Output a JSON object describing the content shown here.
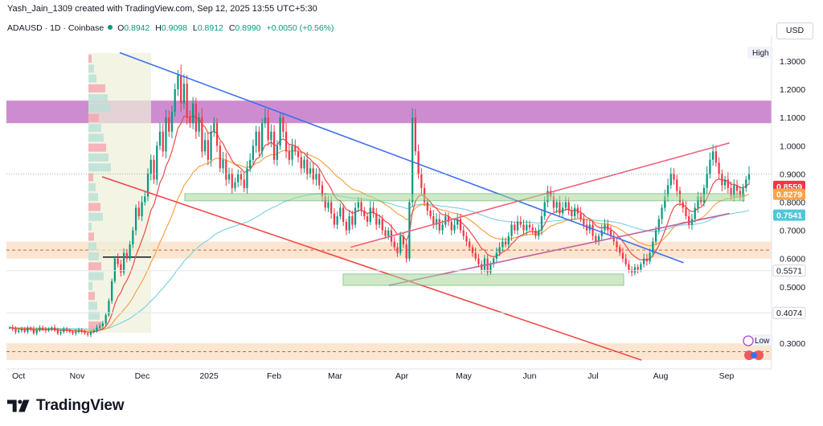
{
  "header": {
    "attribution": "Yash_Jain_1309 created with TradingView.com, Sep 12, 2025 13:55 UTC+5:30",
    "symbol": "ADAUSD · 1D · Coinbase",
    "open_label": "O",
    "open": "0.8942",
    "high_label": "H",
    "high": "0.9098",
    "low_label": "L",
    "low": "0.8912",
    "close_label": "C",
    "close": "0.8990",
    "change": "+0.0050 (+0.56%)",
    "currency": "USD"
  },
  "brand": {
    "name": "TradingView"
  },
  "colors": {
    "up": "#089981",
    "down": "#f23645",
    "ema_red": "#f04848",
    "ema_orange": "#f7a44a",
    "ema_teal": "#7fd4e0",
    "trend_blue": "#3d6ef0",
    "trend_red": "#f04848",
    "resistance_zone": "#c678c8",
    "support_zone": "#f8c89a",
    "green_zone": "#a9d69a"
  },
  "chart_data": {
    "type": "candlestick",
    "symbol": "ADAUSD",
    "interval": "1D",
    "exchange": "Coinbase",
    "x_axis_ticks": [
      "Oct",
      "Nov",
      "Dec",
      "2025",
      "Feb",
      "Mar",
      "Apr",
      "May",
      "Jun",
      "Jul",
      "Aug",
      "Sep"
    ],
    "y_axis_ticks": [
      "1.3000",
      "1.2000",
      "1.1000",
      "1.0000",
      "0.9000",
      "0.8000",
      "0.7000",
      "0.6000",
      "0.5000",
      "0.3000"
    ],
    "ylim": [
      0.22,
      1.36
    ],
    "y_tick_values": [
      1.3,
      1.2,
      1.1,
      1.0,
      0.9,
      0.8,
      0.7,
      0.6,
      0.5,
      0.3
    ],
    "price_labels": [
      {
        "text": "0.8559",
        "value": 0.8559,
        "color": "#f23645"
      },
      {
        "text": "0.8279",
        "value": 0.8279,
        "color": "#f7a44a"
      },
      {
        "text": "0.7541",
        "value": 0.7541,
        "color": "#4ec8d8"
      },
      {
        "text": "0.5571",
        "value": 0.5571,
        "color": "#ffffff"
      },
      {
        "text": "0.4074",
        "value": 0.4074,
        "color": "#ffffff"
      }
    ],
    "axis_markers": {
      "high": "High",
      "low": "Low"
    },
    "zones": [
      {
        "name": "resistance",
        "low": 1.08,
        "high": 1.16,
        "color": "#c678c8"
      },
      {
        "name": "support-mid",
        "low": 0.6,
        "high": 0.66,
        "color": "#f8c89a"
      },
      {
        "name": "support-low",
        "low": 0.24,
        "high": 0.3,
        "color": "#f8c89a"
      }
    ],
    "ohlc_seed": [
      [
        0.36,
        0.37,
        0.34,
        0.35
      ],
      [
        0.35,
        0.36,
        0.34,
        0.355
      ],
      [
        0.355,
        0.36,
        0.33,
        0.34
      ],
      [
        0.34,
        0.355,
        0.33,
        0.35
      ],
      [
        0.35,
        0.36,
        0.34,
        0.345
      ],
      [
        0.345,
        0.35,
        0.33,
        0.34
      ],
      [
        0.34,
        0.36,
        0.335,
        0.355
      ],
      [
        0.355,
        0.36,
        0.34,
        0.35
      ],
      [
        0.35,
        0.355,
        0.33,
        0.335
      ],
      [
        0.335,
        0.35,
        0.33,
        0.345
      ],
      [
        0.345,
        0.36,
        0.34,
        0.355
      ],
      [
        0.355,
        0.365,
        0.345,
        0.35
      ],
      [
        0.35,
        0.36,
        0.34,
        0.345
      ],
      [
        0.345,
        0.355,
        0.335,
        0.35
      ],
      [
        0.35,
        0.36,
        0.345,
        0.355
      ],
      [
        0.355,
        0.36,
        0.34,
        0.345
      ],
      [
        0.345,
        0.35,
        0.33,
        0.335
      ],
      [
        0.335,
        0.345,
        0.33,
        0.34
      ],
      [
        0.34,
        0.355,
        0.335,
        0.35
      ],
      [
        0.35,
        0.355,
        0.34,
        0.345
      ],
      [
        0.345,
        0.35,
        0.335,
        0.34
      ],
      [
        0.34,
        0.345,
        0.33,
        0.335
      ],
      [
        0.335,
        0.345,
        0.33,
        0.34
      ],
      [
        0.34,
        0.35,
        0.335,
        0.345
      ],
      [
        0.345,
        0.35,
        0.34,
        0.34
      ],
      [
        0.34,
        0.35,
        0.33,
        0.335
      ],
      [
        0.335,
        0.34,
        0.325,
        0.33
      ],
      [
        0.33,
        0.345,
        0.325,
        0.34
      ],
      [
        0.34,
        0.35,
        0.335,
        0.345
      ],
      [
        0.345,
        0.36,
        0.34,
        0.355
      ]
    ],
    "series": [
      {
        "name": "",
        "type": "ema",
        "color": "#f04848"
      },
      {
        "name": "",
        "type": "ema",
        "color": "#f7a44a"
      },
      {
        "name": "",
        "type": "ema",
        "color": "#7fd4e0"
      }
    ],
    "closes": [
      0.355,
      0.35,
      0.34,
      0.345,
      0.35,
      0.34,
      0.355,
      0.35,
      0.335,
      0.345,
      0.355,
      0.35,
      0.345,
      0.35,
      0.355,
      0.345,
      0.335,
      0.34,
      0.35,
      0.345,
      0.34,
      0.335,
      0.34,
      0.345,
      0.34,
      0.335,
      0.33,
      0.34,
      0.345,
      0.355,
      0.36,
      0.37,
      0.4,
      0.45,
      0.52,
      0.6,
      0.58,
      0.55,
      0.62,
      0.6,
      0.65,
      0.7,
      0.78,
      0.75,
      0.8,
      0.82,
      0.9,
      0.95,
      0.88,
      1.0,
      1.05,
      0.98,
      1.1,
      1.05,
      1.12,
      1.2,
      1.25,
      1.15,
      1.22,
      1.1,
      1.08,
      1.15,
      1.05,
      1.1,
      0.98,
      1.02,
      0.95,
      1.05,
      1.08,
      1.0,
      0.92,
      0.95,
      0.88,
      0.9,
      0.85,
      0.87,
      0.9,
      0.88,
      0.85,
      0.92,
      0.95,
      1.0,
      1.05,
      0.98,
      1.08,
      1.1,
      1.02,
      1.05,
      0.95,
      1.0,
      1.1,
      1.05,
      0.98,
      0.95,
      1.0,
      0.98,
      0.96,
      0.92,
      0.95,
      0.9,
      0.92,
      0.88,
      0.9,
      0.86,
      0.82,
      0.78,
      0.8,
      0.76,
      0.72,
      0.75,
      0.78,
      0.73,
      0.7,
      0.75,
      0.72,
      0.78,
      0.8,
      0.77,
      0.75,
      0.73,
      0.78,
      0.76,
      0.72,
      0.74,
      0.7,
      0.68,
      0.7,
      0.66,
      0.64,
      0.62,
      0.68,
      0.65,
      0.6,
      0.8,
      1.1,
      0.98,
      0.9,
      0.85,
      0.8,
      0.77,
      0.75,
      0.72,
      0.74,
      0.7,
      0.72,
      0.75,
      0.73,
      0.7,
      0.72,
      0.74,
      0.7,
      0.68,
      0.66,
      0.64,
      0.62,
      0.6,
      0.58,
      0.56,
      0.6,
      0.55,
      0.58,
      0.6,
      0.62,
      0.64,
      0.66,
      0.65,
      0.68,
      0.72,
      0.7,
      0.73,
      0.72,
      0.7,
      0.72,
      0.71,
      0.7,
      0.68,
      0.7,
      0.75,
      0.8,
      0.84,
      0.82,
      0.78,
      0.8,
      0.76,
      0.78,
      0.8,
      0.77,
      0.75,
      0.78,
      0.76,
      0.74,
      0.72,
      0.7,
      0.72,
      0.68,
      0.66,
      0.68,
      0.7,
      0.72,
      0.7,
      0.68,
      0.66,
      0.64,
      0.62,
      0.6,
      0.58,
      0.56,
      0.55,
      0.57,
      0.56,
      0.58,
      0.6,
      0.59,
      0.62,
      0.66,
      0.7,
      0.74,
      0.78,
      0.82,
      0.86,
      0.9,
      0.88,
      0.84,
      0.8,
      0.78,
      0.75,
      0.72,
      0.74,
      0.78,
      0.82,
      0.8,
      0.85,
      0.9,
      0.95,
      0.98,
      0.94,
      0.9,
      0.86,
      0.88,
      0.85,
      0.82,
      0.86,
      0.84,
      0.82,
      0.85,
      0.88,
      0.9
    ],
    "ema_red": [],
    "trend_lines": [
      {
        "name": "descending-blue",
        "from": [
          0.148,
          1.33
        ],
        "to": [
          0.885,
          0.585
        ],
        "color": "#3d6ef0"
      },
      {
        "name": "descending-red",
        "from": [
          0.125,
          0.89
        ],
        "to": [
          0.83,
          0.24
        ],
        "color": "#f04848"
      },
      {
        "name": "ascending-upper",
        "from": [
          0.45,
          0.64
        ],
        "to": [
          0.945,
          1.01
        ],
        "color": "#f0607a"
      },
      {
        "name": "ascending-lower",
        "from": [
          0.5,
          0.505
        ],
        "to": [
          0.945,
          0.76
        ],
        "color": "#c060a0"
      }
    ]
  }
}
